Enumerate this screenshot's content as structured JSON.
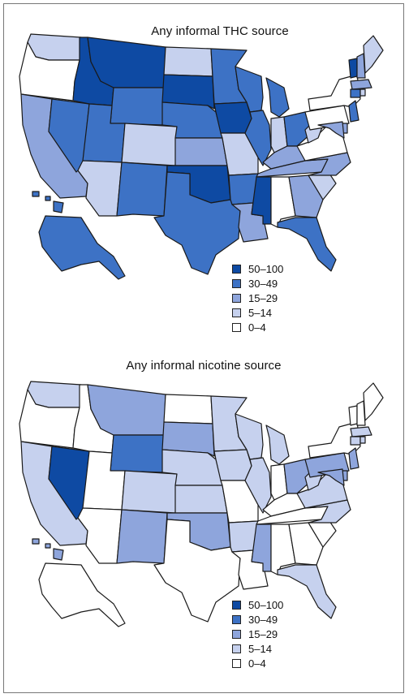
{
  "colors": {
    "c0": "#ffffff",
    "c1": "#c6d1ee",
    "c2": "#8ea5dc",
    "c3": "#3d72c5",
    "c4": "#0e4aa3",
    "border": "#1a1a1a"
  },
  "legend": [
    {
      "label": "50–100",
      "color_key": "c4"
    },
    {
      "label": "30–49",
      "color_key": "c3"
    },
    {
      "label": "15–29",
      "color_key": "c2"
    },
    {
      "label": "5–14",
      "color_key": "c1"
    },
    {
      "label": "0–4",
      "color_key": "c0"
    }
  ],
  "maps": [
    {
      "title": "Any informal THC source",
      "states": {
        "WA": 1,
        "OR": 0,
        "CA": 2,
        "NV": 3,
        "ID": 4,
        "MT": 4,
        "WY": 3,
        "UT": 3,
        "AZ": 1,
        "CO": 1,
        "NM": 3,
        "ND": 1,
        "SD": 4,
        "NE": 3,
        "KS": 2,
        "OK": 4,
        "TX": 3,
        "MN": 3,
        "IA": 4,
        "MO": 1,
        "AR": 3,
        "LA": 2,
        "WI": 3,
        "IL": 3,
        "MI": 3,
        "IN": 1,
        "OH": 3,
        "KY": 2,
        "TN": 2,
        "MS": 4,
        "AL": 0,
        "GA": 2,
        "FL": 3,
        "SC": 1,
        "NC": 2,
        "VA": 0,
        "WV": 1,
        "PA": 0,
        "NY": 0,
        "VT": 4,
        "NH": 2,
        "ME": 1,
        "MA": 2,
        "CT": 3,
        "RI": 1,
        "NJ": 3,
        "DE": 2,
        "MD": 2,
        "AK": 3,
        "HI": 3
      },
      "legend_label": "THC legend"
    },
    {
      "title": "Any informal nicotine source",
      "states": {
        "WA": 1,
        "OR": 0,
        "CA": 1,
        "NV": 4,
        "ID": 0,
        "MT": 2,
        "WY": 3,
        "UT": 0,
        "AZ": 0,
        "CO": 1,
        "NM": 2,
        "ND": 0,
        "SD": 2,
        "NE": 1,
        "KS": 1,
        "OK": 2,
        "TX": 0,
        "MN": 1,
        "IA": 1,
        "MO": 0,
        "AR": 1,
        "LA": 0,
        "WI": 1,
        "IL": 1,
        "MI": 1,
        "IN": 0,
        "OH": 2,
        "KY": 0,
        "TN": 0,
        "MS": 2,
        "AL": 0,
        "GA": 0,
        "FL": 1,
        "SC": 0,
        "NC": 1,
        "VA": 1,
        "WV": 1,
        "PA": 2,
        "NY": 0,
        "VT": 0,
        "NH": 0,
        "ME": 0,
        "MA": 1,
        "CT": 1,
        "RI": 1,
        "NJ": 2,
        "DE": 2,
        "MD": 2,
        "AK": 0,
        "HI": 2
      },
      "legend_label": "nicotine legend"
    }
  ]
}
